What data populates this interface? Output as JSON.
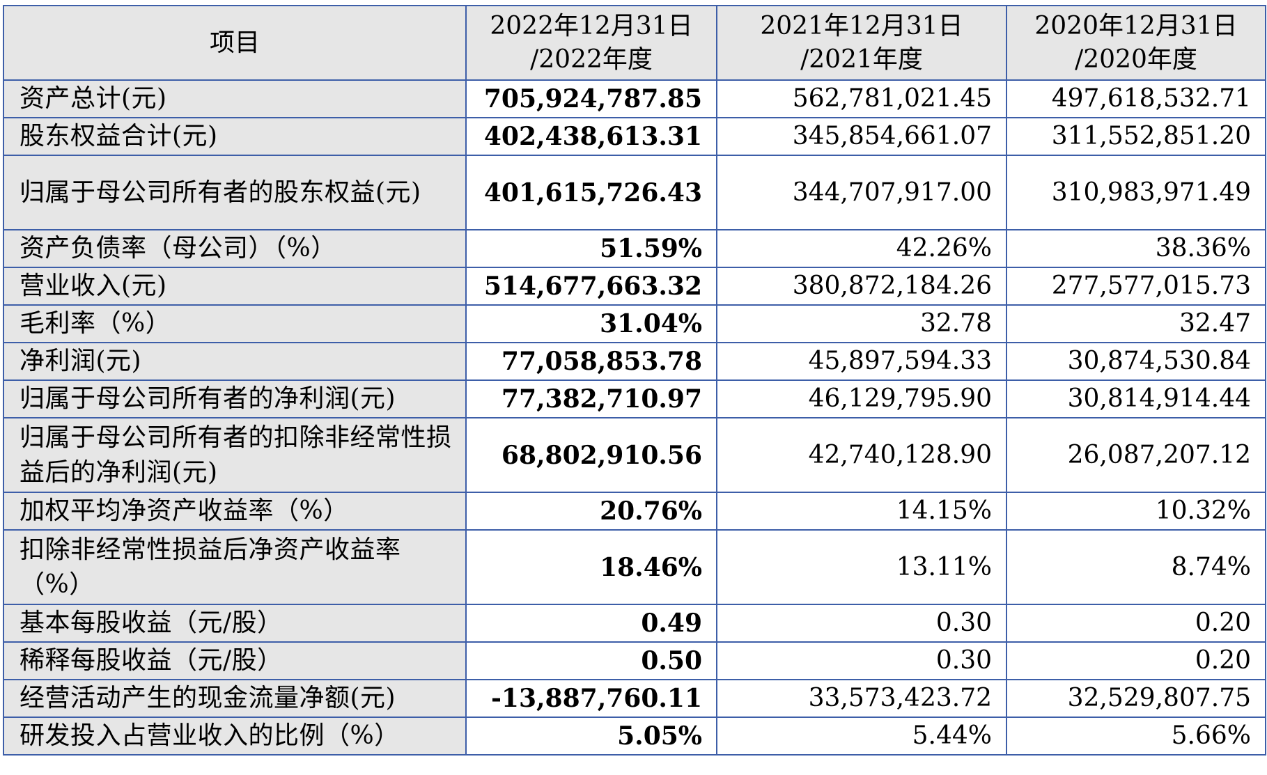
{
  "table": {
    "headers": [
      {
        "line1": "项目",
        "line2": ""
      },
      {
        "line1": "2022年12月31日",
        "line2": "/2022年度"
      },
      {
        "line1": "2021年12月31日",
        "line2": "/2021年度"
      },
      {
        "line1": "2020年12月31日",
        "line2": "/2020年度"
      }
    ],
    "rows": [
      {
        "item": "资产总计(元)",
        "v2022": "705,924,787.85",
        "v2021": "562,781,021.45",
        "v2020": "497,618,532.71"
      },
      {
        "item": "股东权益合计(元)",
        "v2022": "402,438,613.31",
        "v2021": "345,854,661.07",
        "v2020": "311,552,851.20"
      },
      {
        "item": "归属于母公司所有者的股东权益(元)",
        "v2022": "401,615,726.43",
        "v2021": "344,707,917.00",
        "v2020": "310,983,971.49"
      },
      {
        "item": "资产负债率（母公司）（%）",
        "v2022": "51.59%",
        "v2021": "42.26%",
        "v2020": "38.36%"
      },
      {
        "item": "营业收入(元)",
        "v2022": "514,677,663.32",
        "v2021": "380,872,184.26",
        "v2020": "277,577,015.73"
      },
      {
        "item": "毛利率（%）",
        "v2022": "31.04%",
        "v2021": "32.78",
        "v2020": "32.47"
      },
      {
        "item": "净利润(元)",
        "v2022": "77,058,853.78",
        "v2021": "45,897,594.33",
        "v2020": "30,874,530.84"
      },
      {
        "item": "归属于母公司所有者的净利润(元)",
        "v2022": "77,382,710.97",
        "v2021": "46,129,795.90",
        "v2020": "30,814,914.44"
      },
      {
        "item": "归属于母公司所有者的扣除非经常性损益后的净利润(元)",
        "v2022": "68,802,910.56",
        "v2021": "42,740,128.90",
        "v2020": "26,087,207.12"
      },
      {
        "item": "加权平均净资产收益率（%）",
        "v2022": "20.76%",
        "v2021": "14.15%",
        "v2020": "10.32%"
      },
      {
        "item": "扣除非经常性损益后净资产收益率（%）",
        "v2022": "18.46%",
        "v2021": "13.11%",
        "v2020": "8.74%"
      },
      {
        "item": "基本每股收益（元/股）",
        "v2022": "0.49",
        "v2021": "0.30",
        "v2020": "0.20"
      },
      {
        "item": "稀释每股收益（元/股）",
        "v2022": "0.50",
        "v2021": "0.30",
        "v2020": "0.20"
      },
      {
        "item": "经营活动产生的现金流量净额(元)",
        "v2022": "-13,887,760.11",
        "v2021": "33,573,423.72",
        "v2020": "32,529,807.75"
      },
      {
        "item": "研发投入占营业收入的比例（%）",
        "v2022": "5.05%",
        "v2021": "5.44%",
        "v2020": "5.66%"
      }
    ]
  },
  "colors": {
    "border": "#3d5ea8",
    "label_background": "#e6e6e6"
  }
}
